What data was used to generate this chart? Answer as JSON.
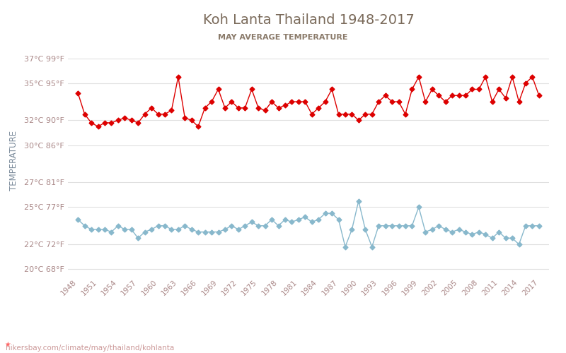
{
  "title": "Koh Lanta Thailand 1948-2017",
  "subtitle": "MAY AVERAGE TEMPERATURE",
  "ylabel": "TEMPERATURE",
  "xlabel_url": "hikersbay.com/climate/may/thailand/kohlanta",
  "years": [
    1948,
    1949,
    1950,
    1951,
    1952,
    1953,
    1954,
    1955,
    1956,
    1957,
    1958,
    1959,
    1960,
    1961,
    1962,
    1963,
    1964,
    1965,
    1966,
    1967,
    1968,
    1969,
    1970,
    1971,
    1972,
    1973,
    1974,
    1975,
    1976,
    1977,
    1978,
    1979,
    1980,
    1981,
    1982,
    1983,
    1984,
    1985,
    1986,
    1987,
    1988,
    1989,
    1990,
    1991,
    1992,
    1993,
    1994,
    1995,
    1996,
    1997,
    1998,
    1999,
    2000,
    2001,
    2002,
    2003,
    2004,
    2005,
    2006,
    2007,
    2008,
    2009,
    2010,
    2011,
    2012,
    2013,
    2014,
    2015,
    2016,
    2017
  ],
  "day_temps": [
    34.2,
    32.5,
    31.8,
    31.5,
    31.8,
    31.8,
    32.0,
    32.2,
    32.0,
    31.8,
    32.5,
    33.0,
    32.5,
    32.5,
    32.8,
    35.5,
    32.2,
    32.0,
    31.5,
    33.0,
    33.5,
    34.5,
    33.0,
    33.5,
    33.0,
    33.0,
    34.5,
    33.0,
    32.8,
    33.5,
    33.0,
    33.2,
    33.5,
    33.5,
    33.5,
    32.5,
    33.0,
    33.5,
    34.5,
    32.5,
    32.5,
    32.5,
    32.0,
    32.5,
    32.5,
    33.5,
    34.0,
    33.5,
    33.5,
    32.5,
    34.5,
    35.5,
    33.5,
    34.5,
    34.0,
    33.5,
    34.0,
    34.0,
    34.0,
    34.5,
    34.5,
    35.5,
    33.5,
    34.5,
    33.8,
    35.5,
    33.5,
    35.0,
    35.5,
    34.0
  ],
  "night_temps": [
    24.0,
    23.5,
    23.2,
    23.2,
    23.2,
    23.0,
    23.5,
    23.2,
    23.2,
    22.5,
    23.0,
    23.2,
    23.5,
    23.5,
    23.2,
    23.2,
    23.5,
    23.2,
    23.0,
    23.0,
    23.0,
    23.0,
    23.2,
    23.5,
    23.2,
    23.5,
    23.8,
    23.5,
    23.5,
    24.0,
    23.5,
    24.0,
    23.8,
    24.0,
    24.2,
    23.8,
    24.0,
    24.5,
    24.5,
    24.0,
    21.8,
    23.2,
    25.5,
    23.2,
    21.8,
    23.5,
    23.5,
    23.5,
    23.5,
    23.5,
    23.5,
    25.0,
    23.0,
    23.2,
    23.5,
    23.2,
    23.0,
    23.2,
    23.0,
    22.8,
    23.0,
    22.8,
    22.5,
    23.0,
    22.5,
    22.5,
    22.0,
    23.5,
    23.5,
    23.5
  ],
  "day_color": "#dd0000",
  "night_color": "#88b8cc",
  "title_color": "#7a6a5a",
  "subtitle_color": "#8a7a6a",
  "ylabel_color": "#7a8a9a",
  "tick_color": "#aa8888",
  "url_color": "#cc9999",
  "bg_color": "#ffffff",
  "grid_color": "#e0e0e0",
  "yticks_c": [
    20,
    22,
    25,
    27,
    30,
    32,
    35,
    37
  ],
  "yticks_f": [
    68,
    72,
    77,
    81,
    86,
    90,
    95,
    99
  ],
  "ylim": [
    19.5,
    38.0
  ],
  "xlim": [
    1946.5,
    2018.5
  ],
  "xtick_years": [
    1948,
    1951,
    1954,
    1957,
    1960,
    1963,
    1966,
    1969,
    1972,
    1975,
    1978,
    1981,
    1984,
    1987,
    1990,
    1993,
    1996,
    1999,
    2002,
    2005,
    2008,
    2011,
    2014,
    2017
  ]
}
